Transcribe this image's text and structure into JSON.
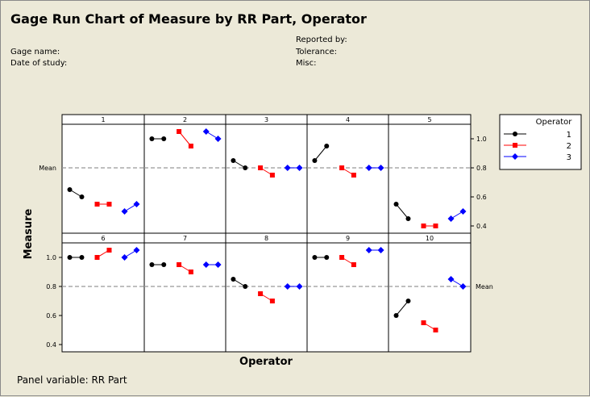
{
  "header": {
    "title": "Gage Run Chart of Measure by RR Part, Operator",
    "gage_name_label": "Gage name:",
    "date_label": "Date of study:",
    "reported_by_label": "Reported by:",
    "tolerance_label": "Tolerance:",
    "misc_label": "Misc:"
  },
  "footer": {
    "panel_variable": "Panel variable: RR Part"
  },
  "colors": {
    "background": "#ece9d8",
    "operator_1": "#000000",
    "operator_2": "#ff0000",
    "operator_3": "#0000ff",
    "mean_line": "#999999"
  },
  "chart_data": {
    "type": "line",
    "title": "Gage Run Chart of Measure by RR Part, Operator",
    "xlabel": "Operator",
    "ylabel": "Measure",
    "ylim": [
      0.35,
      1.1
    ],
    "yticks": [
      0.4,
      0.6,
      0.8,
      1.0
    ],
    "ytick_labels": [
      "0.4",
      "0.6",
      "0.8",
      "1.0"
    ],
    "mean": 0.8,
    "mean_label": "Mean",
    "grid": false,
    "legend": {
      "title": "Operator",
      "position": "right",
      "entries": [
        "1",
        "2",
        "3"
      ],
      "markers": [
        "circle",
        "square",
        "diamond"
      ]
    },
    "panels": [
      {
        "label": "1",
        "series": [
          {
            "operator": "1",
            "values": [
              0.65,
              0.6
            ]
          },
          {
            "operator": "2",
            "values": [
              0.55,
              0.55
            ]
          },
          {
            "operator": "3",
            "values": [
              0.5,
              0.55
            ]
          }
        ]
      },
      {
        "label": "2",
        "series": [
          {
            "operator": "1",
            "values": [
              1.0,
              1.0
            ]
          },
          {
            "operator": "2",
            "values": [
              1.05,
              0.95
            ]
          },
          {
            "operator": "3",
            "values": [
              1.05,
              1.0
            ]
          }
        ]
      },
      {
        "label": "3",
        "series": [
          {
            "operator": "1",
            "values": [
              0.85,
              0.8
            ]
          },
          {
            "operator": "2",
            "values": [
              0.8,
              0.75
            ]
          },
          {
            "operator": "3",
            "values": [
              0.8,
              0.8
            ]
          }
        ]
      },
      {
        "label": "4",
        "series": [
          {
            "operator": "1",
            "values": [
              0.85,
              0.95
            ]
          },
          {
            "operator": "2",
            "values": [
              0.8,
              0.75
            ]
          },
          {
            "operator": "3",
            "values": [
              0.8,
              0.8
            ]
          }
        ]
      },
      {
        "label": "5",
        "series": [
          {
            "operator": "1",
            "values": [
              0.55,
              0.45
            ]
          },
          {
            "operator": "2",
            "values": [
              0.4,
              0.4
            ]
          },
          {
            "operator": "3",
            "values": [
              0.45,
              0.5
            ]
          }
        ]
      },
      {
        "label": "6",
        "series": [
          {
            "operator": "1",
            "values": [
              1.0,
              1.0
            ]
          },
          {
            "operator": "2",
            "values": [
              1.0,
              1.05
            ]
          },
          {
            "operator": "3",
            "values": [
              1.0,
              1.05
            ]
          }
        ]
      },
      {
        "label": "7",
        "series": [
          {
            "operator": "1",
            "values": [
              0.95,
              0.95
            ]
          },
          {
            "operator": "2",
            "values": [
              0.95,
              0.9
            ]
          },
          {
            "operator": "3",
            "values": [
              0.95,
              0.95
            ]
          }
        ]
      },
      {
        "label": "8",
        "series": [
          {
            "operator": "1",
            "values": [
              0.85,
              0.8
            ]
          },
          {
            "operator": "2",
            "values": [
              0.75,
              0.7
            ]
          },
          {
            "operator": "3",
            "values": [
              0.8,
              0.8
            ]
          }
        ]
      },
      {
        "label": "9",
        "series": [
          {
            "operator": "1",
            "values": [
              1.0,
              1.0
            ]
          },
          {
            "operator": "2",
            "values": [
              1.0,
              0.95
            ]
          },
          {
            "operator": "3",
            "values": [
              1.05,
              1.05
            ]
          }
        ]
      },
      {
        "label": "10",
        "series": [
          {
            "operator": "1",
            "values": [
              0.6,
              0.7
            ]
          },
          {
            "operator": "2",
            "values": [
              0.55,
              0.5
            ]
          },
          {
            "operator": "3",
            "values": [
              0.85,
              0.8
            ]
          }
        ]
      }
    ]
  }
}
